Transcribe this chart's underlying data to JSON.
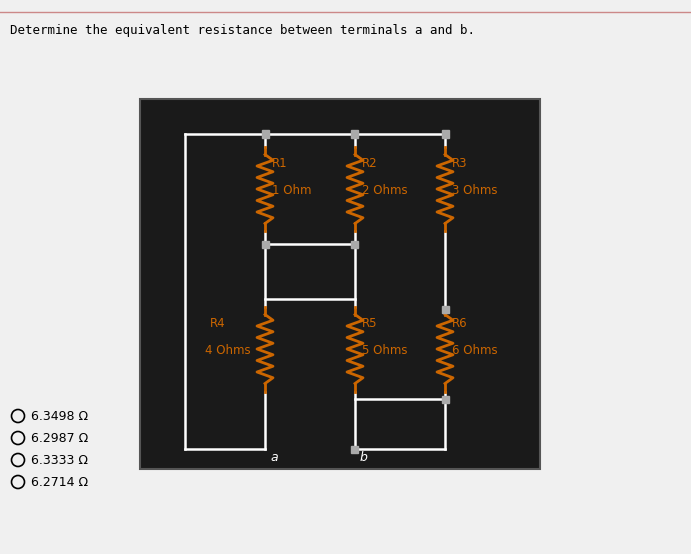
{
  "title": "Determine the equivalent resistance between terminals a and b.",
  "background_color": "#1a1a1a",
  "outer_bg": "#f0f0f0",
  "wire_color": "#ffffff",
  "resistor_color": "#cc6600",
  "node_color": "#888888",
  "label_color": "#cc6600",
  "options": [
    "6.3498 Ω",
    "6.2987 Ω",
    "6.3333 Ω",
    "6.2714 Ω"
  ],
  "resistors": [
    {
      "name": "R1",
      "value": "1 Ohm"
    },
    {
      "name": "R2",
      "value": "2 Ohms"
    },
    {
      "name": "R3",
      "value": "3 Ohms"
    },
    {
      "name": "R4",
      "value": "4 Ohms"
    },
    {
      "name": "R5",
      "value": "5 Ohms"
    },
    {
      "name": "R6",
      "value": "6 Ohms"
    }
  ]
}
